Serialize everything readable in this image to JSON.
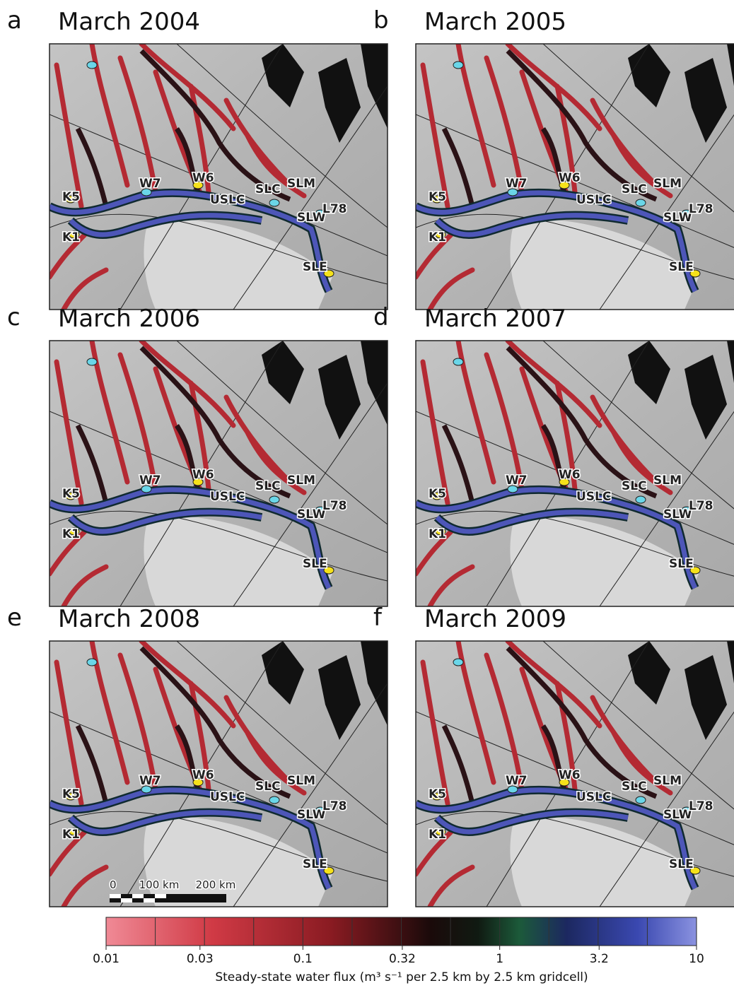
{
  "panels": [
    {
      "letter": "a",
      "title": "March 2004",
      "labels": [
        "K5",
        "K1",
        "W7",
        "W6",
        "USLC",
        "SLC",
        "SLM",
        "SLW",
        "L78",
        "SLE"
      ]
    },
    {
      "letter": "b",
      "title": "March 2005",
      "labels": [
        "K5",
        "K1",
        "W7",
        "W6",
        "USLC",
        "SLC",
        "SLM",
        "SLW",
        "L78",
        "SLE"
      ]
    },
    {
      "letter": "c",
      "title": "March 2006",
      "labels": [
        "K5",
        "K1",
        "W7",
        "W6",
        "USLC",
        "SLC",
        "SLM",
        "SLW",
        "L78",
        "SLE"
      ]
    },
    {
      "letter": "d",
      "title": "March 2007",
      "labels": [
        "K5",
        "K1",
        "W7",
        "W6",
        "USLC",
        "SLC",
        "SLM",
        "SLW",
        "L78",
        "SLE"
      ]
    },
    {
      "letter": "e",
      "title": "March 2008",
      "labels": [
        "K5",
        "K1",
        "W7",
        "W6",
        "USLC",
        "SLC",
        "SLM",
        "SLW",
        "L78",
        "SLE"
      ],
      "scale_bar": [
        "0",
        "100 km",
        "200 km"
      ]
    },
    {
      "letter": "f",
      "title": "March 2009",
      "labels": [
        "K5",
        "K1",
        "W7",
        "W6",
        "USLC",
        "SLC",
        "SLM",
        "SLW",
        "L78",
        "SLE"
      ]
    }
  ],
  "colorbar": {
    "ticks": [
      0.01,
      0.03,
      0.1,
      0.32,
      1,
      3.2,
      10
    ],
    "lim": [
      0.01,
      10
    ],
    "log": true,
    "label": "Steady-state water flux (m³ s⁻¹ per 2.5 km by 2.5 km gridcell)"
  }
}
